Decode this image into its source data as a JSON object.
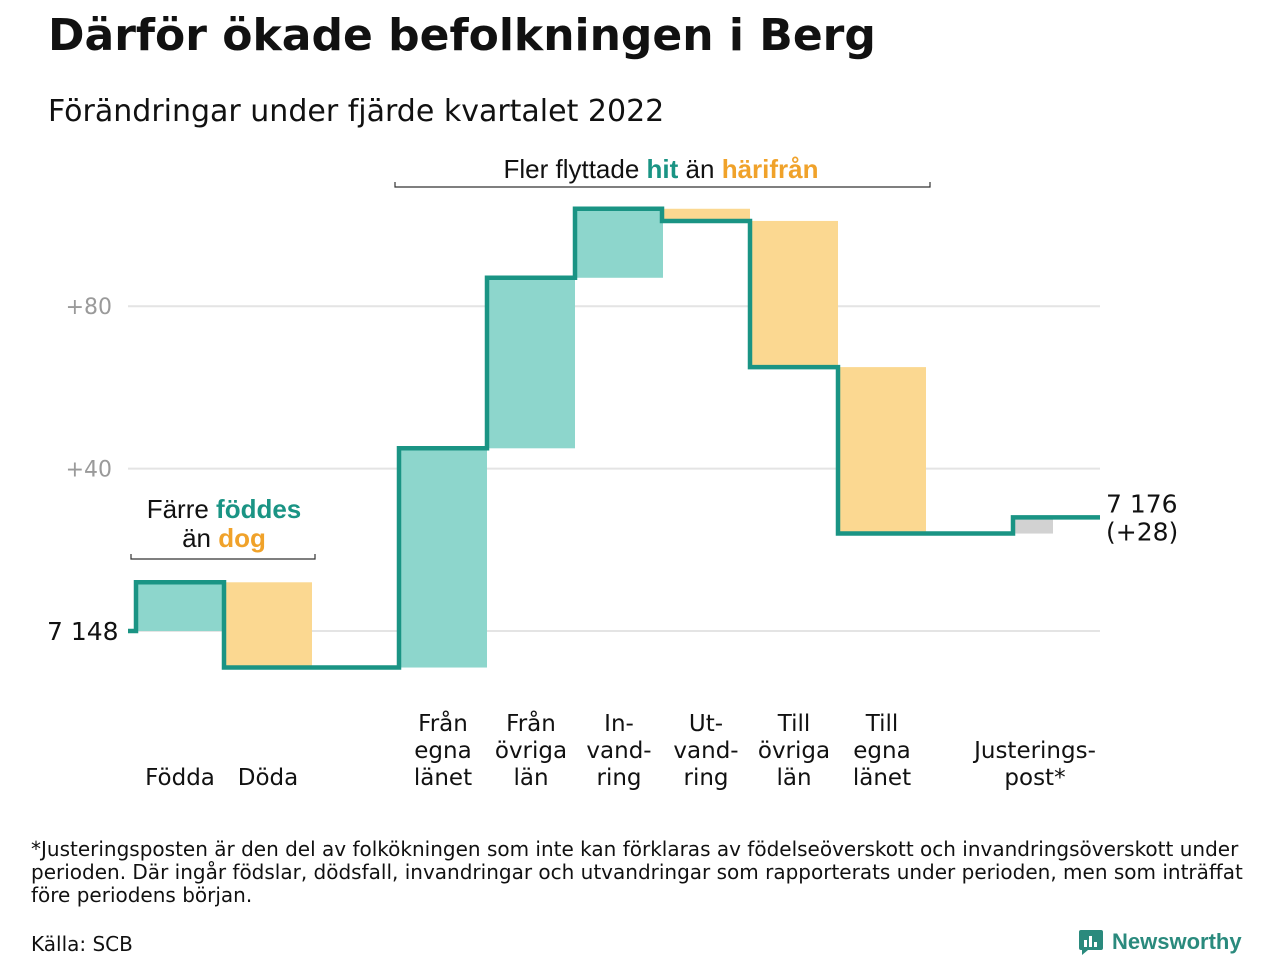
{
  "title": "Därför ökade befolkningen i Berg",
  "subtitle": "Förändringar under fjärde kvartalet 2022",
  "colors": {
    "line": "#1a9484",
    "increase": "#8dd6cc",
    "decrease": "#fbd891",
    "adjust": "#d2d2d2",
    "grid": "#e4e4e4",
    "teal_text": "#1a9484",
    "orange_text": "#f0a22a",
    "brand": "#2a8a7d"
  },
  "chart_data": {
    "type": "waterfall",
    "baseline": 7148,
    "start_label": "7 148",
    "end_label": "7 176",
    "end_change_label": "(+28)",
    "ytick_labels": [
      "+80",
      "+40"
    ],
    "yticks": [
      80,
      40
    ],
    "ylim": [
      -12,
      116
    ],
    "steps": [
      {
        "key": "fodda",
        "label": [
          "Födda"
        ],
        "value": 12,
        "kind": "increase"
      },
      {
        "key": "doda",
        "label": [
          "Döda"
        ],
        "value": -21,
        "kind": "decrease"
      },
      {
        "key": "fran_egna",
        "label": [
          "Från",
          "egna",
          "länet"
        ],
        "value": 54,
        "kind": "increase"
      },
      {
        "key": "fran_ovriga",
        "label": [
          "Från",
          "övriga",
          "län"
        ],
        "value": 42,
        "kind": "increase"
      },
      {
        "key": "invandring",
        "label": [
          "In-",
          "vand-",
          "ring"
        ],
        "value": 17,
        "kind": "increase"
      },
      {
        "key": "utvandring",
        "label": [
          "Ut-",
          "vand-",
          "ring"
        ],
        "value": -3,
        "kind": "decrease"
      },
      {
        "key": "till_ovriga",
        "label": [
          "Till",
          "övriga",
          "län"
        ],
        "value": -36,
        "kind": "decrease"
      },
      {
        "key": "till_egna",
        "label": [
          "Till",
          "egna",
          "länet"
        ],
        "value": -41,
        "kind": "decrease"
      },
      {
        "key": "justering",
        "label": [
          "Justerings-",
          "post*"
        ],
        "value": 4,
        "kind": "adjust"
      }
    ],
    "annotations": [
      {
        "key": "birth",
        "lines": [
          [
            {
              "t": "Färre ",
              "c": "plain"
            },
            {
              "t": "föddes",
              "c": "teal"
            }
          ],
          [
            {
              "t": "än ",
              "c": "plain"
            },
            {
              "t": "dog",
              "c": "orange"
            }
          ]
        ]
      },
      {
        "key": "migration",
        "lines": [
          [
            {
              "t": "Fler flyttade ",
              "c": "plain"
            },
            {
              "t": "hit",
              "c": "teal"
            },
            {
              "t": " än ",
              "c": "plain"
            },
            {
              "t": "härifrån",
              "c": "orange"
            }
          ]
        ]
      }
    ]
  },
  "footnote": "*Justeringsposten är den del av folkökningen som inte kan förklaras av födelseöverskott och invandringsöverskott under perioden. Där ingår födslar, dödsfall, invandringar och utvandringar som rapporterats under perioden, men som inträffat före periodens början.",
  "source": "Källa: SCB",
  "brand": {
    "name": "Newsworthy",
    "icon": "newsworthy-logo-icon"
  }
}
